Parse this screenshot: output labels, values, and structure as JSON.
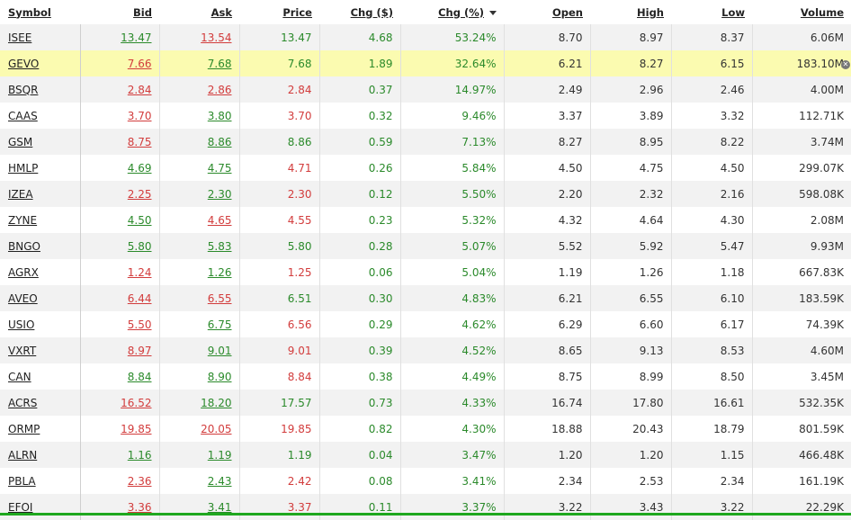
{
  "headers": {
    "symbol": "Symbol",
    "bid": "Bid",
    "ask": "Ask",
    "price": "Price",
    "chg": "Chg ($)",
    "chgpct": "Chg (%)",
    "open": "Open",
    "high": "High",
    "low": "Low",
    "volume": "Volume"
  },
  "rows": [
    {
      "symbol": "ISEE",
      "bid": "13.47",
      "ask": "13.54",
      "price": "13.47",
      "chg": "4.68",
      "chgpct": "53.24%",
      "open": "8.70",
      "high": "8.97",
      "low": "8.37",
      "volume": "6.06M"
    },
    {
      "symbol": "GEVO",
      "bid": "7.66",
      "ask": "7.68",
      "price": "7.68",
      "chg": "1.89",
      "chgpct": "32.64%",
      "open": "6.21",
      "high": "8.27",
      "low": "6.15",
      "volume": "183.10M"
    },
    {
      "symbol": "BSQR",
      "bid": "2.84",
      "ask": "2.86",
      "price": "2.84",
      "chg": "0.37",
      "chgpct": "14.97%",
      "open": "2.49",
      "high": "2.96",
      "low": "2.46",
      "volume": "4.00M"
    },
    {
      "symbol": "CAAS",
      "bid": "3.70",
      "ask": "3.80",
      "price": "3.70",
      "chg": "0.32",
      "chgpct": "9.46%",
      "open": "3.37",
      "high": "3.89",
      "low": "3.32",
      "volume": "112.71K"
    },
    {
      "symbol": "GSM",
      "bid": "8.75",
      "ask": "8.86",
      "price": "8.86",
      "chg": "0.59",
      "chgpct": "7.13%",
      "open": "8.27",
      "high": "8.95",
      "low": "8.22",
      "volume": "3.74M"
    },
    {
      "symbol": "HMLP",
      "bid": "4.69",
      "ask": "4.75",
      "price": "4.71",
      "chg": "0.26",
      "chgpct": "5.84%",
      "open": "4.50",
      "high": "4.75",
      "low": "4.50",
      "volume": "299.07K"
    },
    {
      "symbol": "IZEA",
      "bid": "2.25",
      "ask": "2.30",
      "price": "2.30",
      "chg": "0.12",
      "chgpct": "5.50%",
      "open": "2.20",
      "high": "2.32",
      "low": "2.16",
      "volume": "598.08K"
    },
    {
      "symbol": "ZYNE",
      "bid": "4.50",
      "ask": "4.65",
      "price": "4.55",
      "chg": "0.23",
      "chgpct": "5.32%",
      "open": "4.32",
      "high": "4.64",
      "low": "4.30",
      "volume": "2.08M"
    },
    {
      "symbol": "BNGO",
      "bid": "5.80",
      "ask": "5.83",
      "price": "5.80",
      "chg": "0.28",
      "chgpct": "5.07%",
      "open": "5.52",
      "high": "5.92",
      "low": "5.47",
      "volume": "9.93M"
    },
    {
      "symbol": "AGRX",
      "bid": "1.24",
      "ask": "1.26",
      "price": "1.25",
      "chg": "0.06",
      "chgpct": "5.04%",
      "open": "1.19",
      "high": "1.26",
      "low": "1.18",
      "volume": "667.83K"
    },
    {
      "symbol": "AVEO",
      "bid": "6.44",
      "ask": "6.55",
      "price": "6.51",
      "chg": "0.30",
      "chgpct": "4.83%",
      "open": "6.21",
      "high": "6.55",
      "low": "6.10",
      "volume": "183.59K"
    },
    {
      "symbol": "USIO",
      "bid": "5.50",
      "ask": "6.75",
      "price": "6.56",
      "chg": "0.29",
      "chgpct": "4.62%",
      "open": "6.29",
      "high": "6.60",
      "low": "6.17",
      "volume": "74.39K"
    },
    {
      "symbol": "VXRT",
      "bid": "8.97",
      "ask": "9.01",
      "price": "9.01",
      "chg": "0.39",
      "chgpct": "4.52%",
      "open": "8.65",
      "high": "9.13",
      "low": "8.53",
      "volume": "4.60M"
    },
    {
      "symbol": "CAN",
      "bid": "8.84",
      "ask": "8.90",
      "price": "8.84",
      "chg": "0.38",
      "chgpct": "4.49%",
      "open": "8.75",
      "high": "8.99",
      "low": "8.50",
      "volume": "3.45M"
    },
    {
      "symbol": "ACRS",
      "bid": "16.52",
      "ask": "18.20",
      "price": "17.57",
      "chg": "0.73",
      "chgpct": "4.33%",
      "open": "16.74",
      "high": "17.80",
      "low": "16.61",
      "volume": "532.35K"
    },
    {
      "symbol": "ORMP",
      "bid": "19.85",
      "ask": "20.05",
      "price": "19.85",
      "chg": "0.82",
      "chgpct": "4.30%",
      "open": "18.88",
      "high": "20.43",
      "low": "18.79",
      "volume": "801.59K"
    },
    {
      "symbol": "ALRN",
      "bid": "1.16",
      "ask": "1.19",
      "price": "1.19",
      "chg": "0.04",
      "chgpct": "3.47%",
      "open": "1.20",
      "high": "1.20",
      "low": "1.15",
      "volume": "466.48K"
    },
    {
      "symbol": "PBLA",
      "bid": "2.36",
      "ask": "2.43",
      "price": "2.42",
      "chg": "0.08",
      "chgpct": "3.41%",
      "open": "2.34",
      "high": "2.53",
      "low": "2.34",
      "volume": "161.19K"
    },
    {
      "symbol": "EFOI",
      "bid": "3.36",
      "ask": "3.41",
      "price": "3.37",
      "chg": "0.11",
      "chgpct": "3.37%",
      "open": "3.22",
      "high": "3.43",
      "low": "3.22",
      "volume": "22.29K"
    }
  ],
  "colors": {
    "up": "#2b8a2b",
    "down": "#d23c3c",
    "highlight": "#fbfbb0",
    "bottom_bar": "#1fa81f"
  }
}
